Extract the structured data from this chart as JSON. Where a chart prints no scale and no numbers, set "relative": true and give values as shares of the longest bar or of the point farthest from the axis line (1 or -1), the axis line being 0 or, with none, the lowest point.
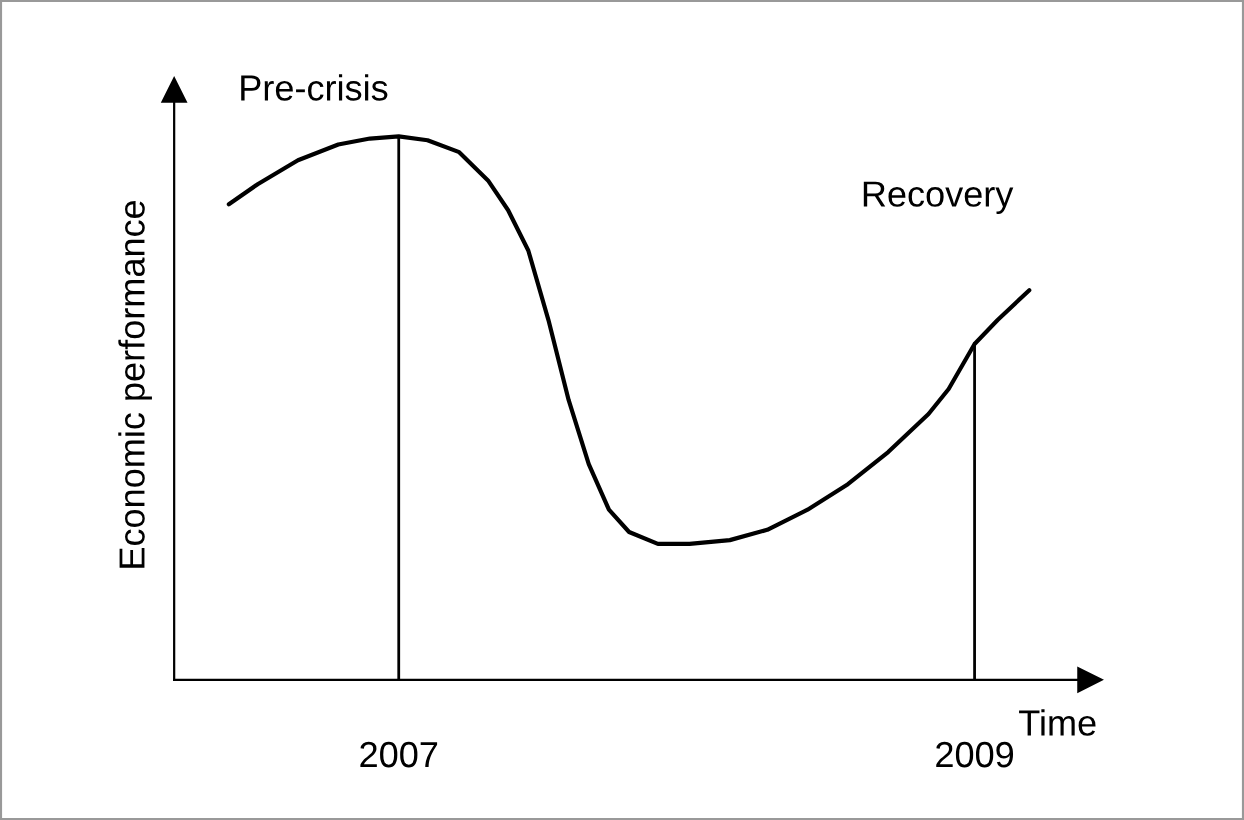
{
  "chart_data": {
    "type": "line",
    "relative": true,
    "xlabel": "Time",
    "ylabel": "Economic performance",
    "x": [
      2006.41,
      2006.51,
      2006.65,
      2006.79,
      2006.9,
      2007,
      2007.1,
      2007.21,
      2007.31,
      2007.38,
      2007.45,
      2007.52,
      2007.59,
      2007.66,
      2007.73,
      2007.8,
      2007.9,
      2008.01,
      2008.15,
      2008.28,
      2008.42,
      2008.56,
      2008.7,
      2008.84,
      2008.91,
      2009,
      2009.08,
      2009.19
    ],
    "series": [
      {
        "color": "#000000",
        "values": [
          0.875,
          0.912,
          0.956,
          0.985,
          0.996,
          1.0,
          0.993,
          0.971,
          0.919,
          0.864,
          0.79,
          0.662,
          0.515,
          0.397,
          0.313,
          0.272,
          0.25,
          0.25,
          0.257,
          0.276,
          0.313,
          0.36,
          0.419,
          0.489,
          0.535,
          0.618,
          0.662,
          0.717
        ]
      }
    ],
    "xlim": [
      2006.22,
      2009.4
    ],
    "xticks": [
      2007,
      2009
    ],
    "ref_lines": [
      {
        "axis": "x",
        "value": 2007,
        "color": "#000000"
      },
      {
        "axis": "x",
        "value": 2009,
        "color": "#000000"
      }
    ],
    "annotations": [
      "Pre-crisis",
      "Recovery"
    ],
    "grid": false,
    "legend": false,
    "marker": "none",
    "line_style": "solid"
  }
}
